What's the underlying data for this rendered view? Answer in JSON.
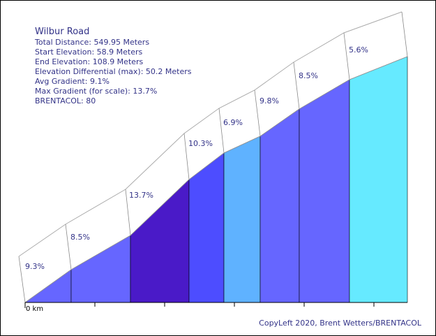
{
  "info": {
    "title": "Wilbur Road",
    "total_distance": "Total Distance: 549.95 Meters",
    "start_elevation": "Start Elevation: 58.9 Meters",
    "end_elevation": "End Elevation: 108.9 Meters",
    "elevation_diff": "Elevation Differential (max): 50.2 Meters",
    "avg_gradient": "Avg Gradient: 9.1%",
    "max_gradient": "Max Gradient (for scale): 13.7%",
    "brentacol": "BRENTACOL: 80"
  },
  "copyright": "CopyLeft 2020, Brent Wetters/BRENTACOL",
  "chart_data": {
    "type": "area",
    "x_start_label": "0 km",
    "segments": [
      {
        "label": "9.3%",
        "gradient": 9.3,
        "color": "#6666ff"
      },
      {
        "label": "8.5%",
        "gradient": 8.5,
        "color": "#6666ff"
      },
      {
        "label": "13.7%",
        "gradient": 13.7,
        "color": "#4a1ac8"
      },
      {
        "label": "10.3%",
        "gradient": 10.3,
        "color": "#4d4dff"
      },
      {
        "label": "6.9%",
        "gradient": 6.9,
        "color": "#5fb2ff"
      },
      {
        "label": "9.8%",
        "gradient": 9.8,
        "color": "#6666ff"
      },
      {
        "label": "8.5%",
        "gradient": 8.5,
        "color": "#6666ff"
      },
      {
        "label": "5.6%",
        "gradient": 5.6,
        "color": "#66eaff"
      }
    ]
  }
}
